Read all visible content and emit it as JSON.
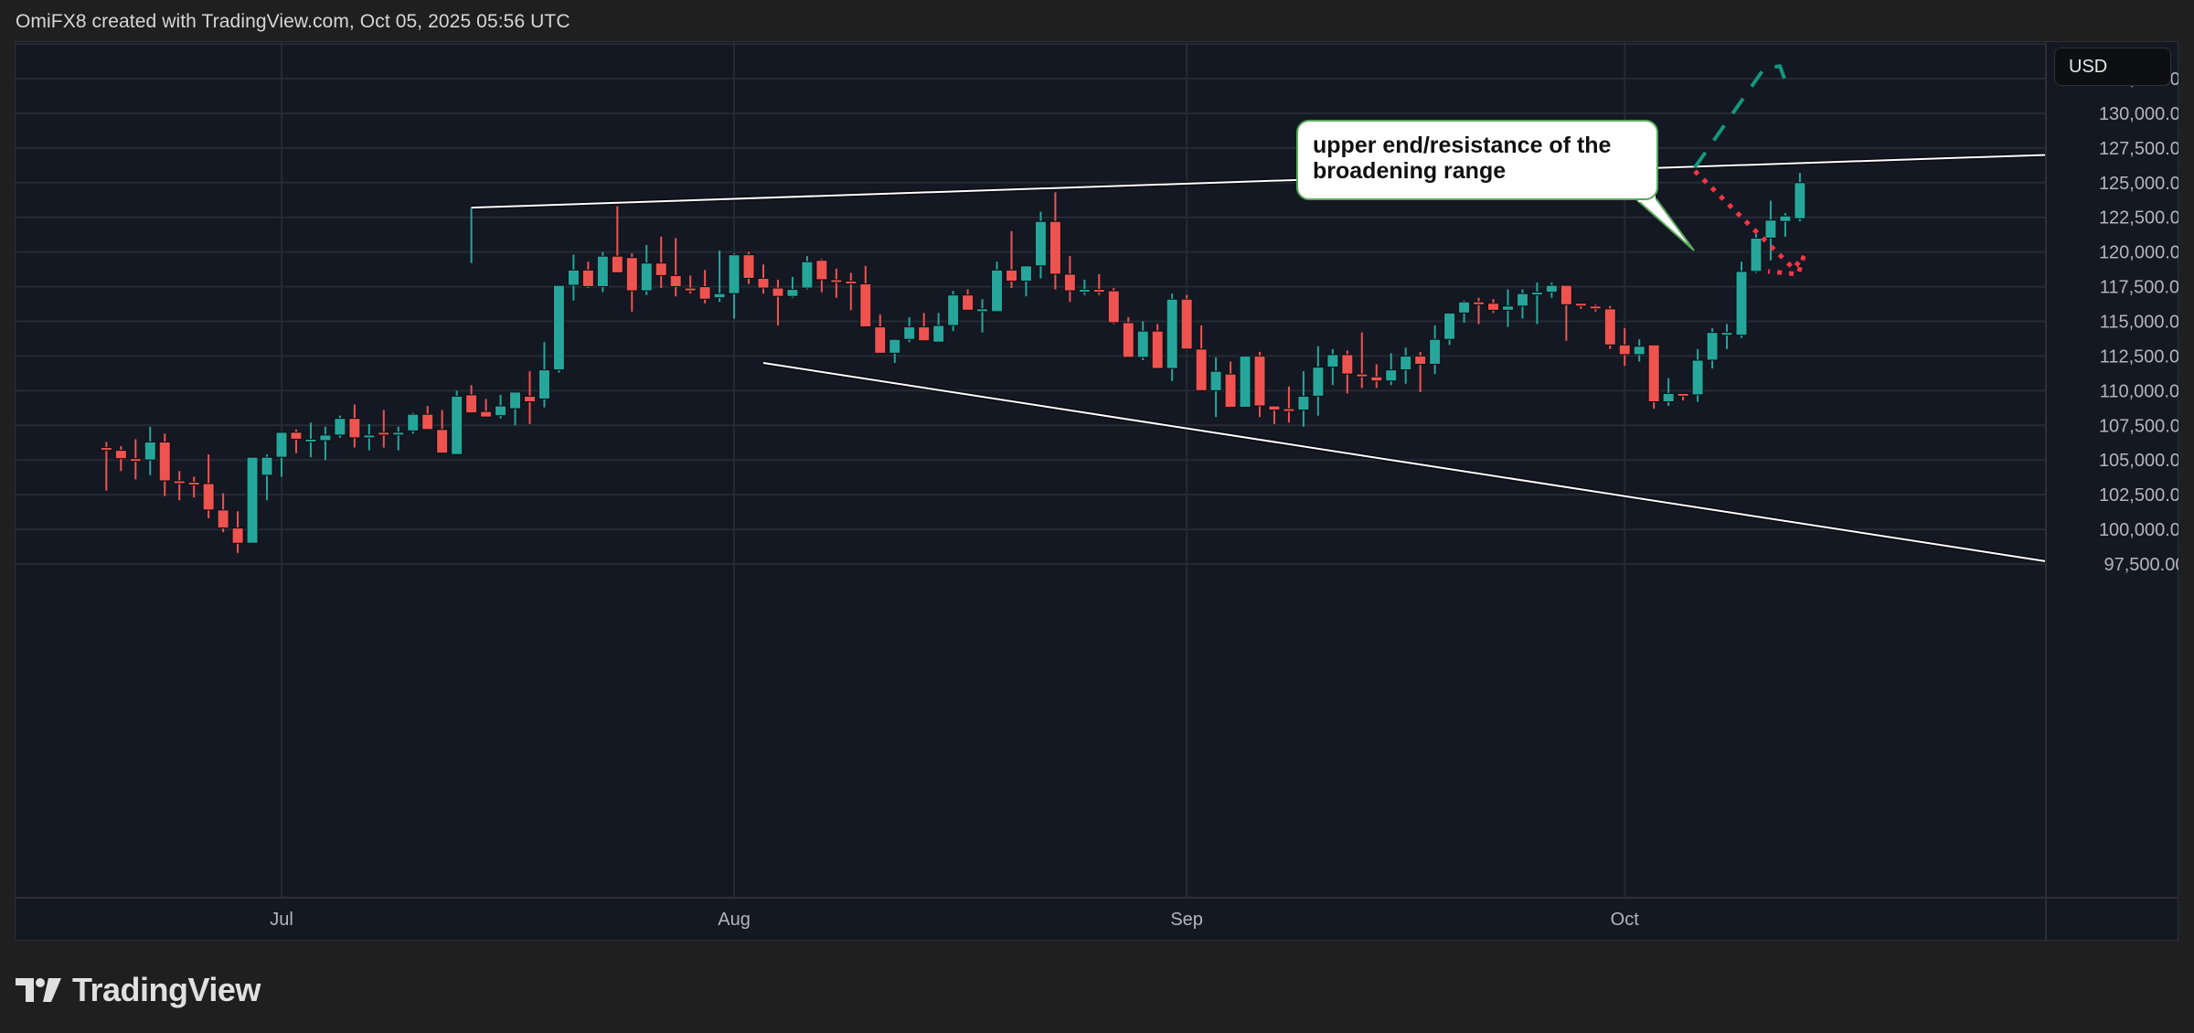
{
  "header": {
    "attribution": "OmiFX8 created with TradingView.com, Oct 05, 2025 05:56 UTC"
  },
  "price_axis": {
    "currency_label": "USD"
  },
  "annotation": {
    "callout_text": "upper end/resistance of the broadening range"
  },
  "footer": {
    "logo_text": "TradingView"
  },
  "colors": {
    "up": "#26a69a",
    "down": "#ef5350",
    "background": "#141823",
    "grid": "#262a35",
    "trendline": "#ffffff",
    "bull_projection": "#14977f",
    "bear_projection": "#f23645",
    "callout_border": "#5aa85a"
  },
  "chart_data": {
    "type": "candlestick",
    "title": "",
    "xlabel": "",
    "ylabel": "USD",
    "ylim": [
      95000,
      134500
    ],
    "y_ticks": [
      "132,500.00",
      "130,000.00",
      "127,500.00",
      "125,000.00",
      "122,500.00",
      "120,000.00",
      "117,500.00",
      "115,000.00",
      "112,500.00",
      "110,000.00",
      "107,500.00",
      "105,000.00",
      "102,500.00",
      "100,000.00",
      "97,500.00"
    ],
    "y_tick_values": [
      132500,
      130000,
      127500,
      125000,
      122500,
      120000,
      117500,
      115000,
      112500,
      110000,
      107500,
      105000,
      102500,
      100000,
      97500
    ],
    "x_ticks": [
      {
        "label": "Jul",
        "day": 0
      },
      {
        "label": "Aug",
        "day": 31
      },
      {
        "label": "Sep",
        "day": 62
      },
      {
        "label": "Oct",
        "day": 92
      }
    ],
    "grid": true,
    "interval": "1D",
    "candles_start_day": -12,
    "candles_note": "day offsets relative to Jul 1; values estimated from pixels",
    "candles": [
      [
        105900,
        106300,
        102800,
        105700
      ],
      [
        105700,
        106000,
        104200,
        105100
      ],
      [
        105100,
        106500,
        103600,
        104900
      ],
      [
        105000,
        107400,
        103900,
        106300
      ],
      [
        106300,
        106900,
        102400,
        103500
      ],
      [
        103500,
        104200,
        102100,
        103400
      ],
      [
        103400,
        103800,
        102300,
        103300
      ],
      [
        103300,
        105400,
        100800,
        101400
      ],
      [
        101400,
        102600,
        99800,
        100100
      ],
      [
        100100,
        101300,
        98300,
        99000
      ],
      [
        99000,
        103200,
        100800,
        105200
      ],
      [
        103900,
        105400,
        102100,
        105200
      ],
      [
        105200,
        106300,
        103800,
        107000
      ],
      [
        107000,
        107200,
        105500,
        106500
      ],
      [
        106500,
        107700,
        105200,
        106500
      ],
      [
        106400,
        107400,
        105000,
        106800
      ],
      [
        106800,
        108200,
        106600,
        108000
      ],
      [
        108000,
        109000,
        105900,
        106600
      ],
      [
        106600,
        107600,
        105700,
        106800
      ],
      [
        107000,
        108600,
        105900,
        106900
      ],
      [
        106900,
        107400,
        105700,
        107000
      ],
      [
        107100,
        108400,
        106900,
        108300
      ],
      [
        108300,
        108900,
        107600,
        107200
      ],
      [
        107200,
        108600,
        106300,
        105500
      ],
      [
        105400,
        110000,
        106400,
        109600
      ],
      [
        109700,
        110400,
        108500,
        108400
      ],
      [
        108500,
        109400,
        108200,
        108100
      ],
      [
        108200,
        109700,
        108000,
        108900
      ],
      [
        108700,
        109500,
        107500,
        109900
      ],
      [
        109600,
        111400,
        107600,
        109200
      ],
      [
        109400,
        113500,
        108800,
        111500
      ],
      [
        111500,
        116700,
        111300,
        117600
      ],
      [
        117600,
        119800,
        116500,
        118700
      ],
      [
        118700,
        119300,
        117400,
        117500
      ],
      [
        117500,
        120000,
        117100,
        119700
      ],
      [
        119700,
        123300,
        119300,
        118500
      ],
      [
        119600,
        119900,
        115700,
        117200
      ],
      [
        117200,
        120500,
        116900,
        119200
      ],
      [
        119200,
        121100,
        117400,
        118300
      ],
      [
        118300,
        121000,
        116800,
        117500
      ],
      [
        117400,
        118300,
        117000,
        117200
      ],
      [
        117500,
        118700,
        116300,
        116600
      ],
      [
        116700,
        120100,
        116400,
        117000
      ],
      [
        117000,
        119900,
        115200,
        119800
      ],
      [
        119800,
        120000,
        117700,
        118100
      ],
      [
        118100,
        119100,
        117000,
        117400
      ],
      [
        117400,
        118000,
        114700,
        116800
      ],
      [
        116800,
        118200,
        116700,
        117300
      ],
      [
        117400,
        119700,
        117300,
        119300
      ],
      [
        119400,
        119500,
        117100,
        118000
      ],
      [
        118000,
        118800,
        116700,
        117900
      ],
      [
        117900,
        118500,
        115800,
        117700
      ],
      [
        117700,
        119000,
        115900,
        114600
      ],
      [
        114600,
        115500,
        112900,
        112700
      ],
      [
        112700,
        113600,
        112000,
        113700
      ],
      [
        113700,
        115300,
        113500,
        114600
      ],
      [
        114600,
        115600,
        114400,
        113600
      ],
      [
        113500,
        115600,
        113500,
        114700
      ],
      [
        114700,
        117200,
        114300,
        116900
      ],
      [
        116900,
        117300,
        115900,
        115800
      ],
      [
        115700,
        116600,
        114200,
        115900
      ],
      [
        115700,
        119300,
        115700,
        118700
      ],
      [
        118700,
        121500,
        117400,
        117900
      ],
      [
        117900,
        118700,
        116800,
        119000
      ],
      [
        119000,
        122900,
        118100,
        122200
      ],
      [
        122200,
        124300,
        117300,
        118400
      ],
      [
        118400,
        119700,
        116400,
        117200
      ],
      [
        117200,
        118000,
        116900,
        117300
      ],
      [
        117300,
        118400,
        116900,
        117200
      ],
      [
        117200,
        117400,
        114800,
        114900
      ],
      [
        114900,
        115300,
        112600,
        112400
      ],
      [
        112400,
        115000,
        112200,
        114300
      ],
      [
        114300,
        114800,
        111600,
        111600
      ],
      [
        111600,
        117000,
        110700,
        116600
      ],
      [
        116600,
        116900,
        113500,
        113000
      ],
      [
        113000,
        114700,
        110400,
        110000
      ],
      [
        110000,
        112400,
        108100,
        111400
      ],
      [
        111200,
        112100,
        110000,
        108800
      ],
      [
        108800,
        111600,
        109200,
        112500
      ],
      [
        112500,
        112800,
        108100,
        108900
      ],
      [
        108900,
        108900,
        107600,
        108600
      ],
      [
        108700,
        110300,
        107700,
        108600
      ],
      [
        108600,
        111400,
        107400,
        109600
      ],
      [
        109600,
        113200,
        108200,
        111700
      ],
      [
        111700,
        113000,
        110400,
        112600
      ],
      [
        112600,
        112900,
        109800,
        111200
      ],
      [
        111200,
        114200,
        110200,
        111000
      ],
      [
        111000,
        111900,
        110200,
        110700
      ],
      [
        110700,
        112700,
        110400,
        111500
      ],
      [
        111500,
        113100,
        110500,
        112500
      ],
      [
        112500,
        112800,
        109900,
        111900
      ],
      [
        111900,
        114700,
        111200,
        113700
      ],
      [
        113700,
        115500,
        113300,
        115600
      ],
      [
        115600,
        116500,
        114900,
        116400
      ],
      [
        116400,
        116700,
        114800,
        116300
      ],
      [
        116300,
        116600,
        115600,
        115800
      ],
      [
        115800,
        117300,
        114600,
        116100
      ],
      [
        116100,
        117300,
        115200,
        117000
      ],
      [
        117000,
        117800,
        114800,
        117100
      ],
      [
        117100,
        117800,
        116700,
        117600
      ],
      [
        117600,
        117400,
        113600,
        116200
      ],
      [
        116300,
        116300,
        115900,
        116100
      ],
      [
        116100,
        116200,
        115700,
        115900
      ],
      [
        115900,
        116100,
        113000,
        113300
      ],
      [
        113300,
        114500,
        111800,
        112600
      ],
      [
        112600,
        113700,
        112100,
        113200
      ],
      [
        113300,
        113300,
        108700,
        109200
      ],
      [
        109200,
        110900,
        108900,
        109800
      ],
      [
        109800,
        109800,
        109300,
        109700
      ],
      [
        109700,
        113000,
        109200,
        112200
      ],
      [
        112200,
        114500,
        111600,
        114200
      ],
      [
        114200,
        114800,
        113000,
        114200
      ],
      [
        114000,
        119300,
        113800,
        118600
      ],
      [
        118600,
        121300,
        118500,
        121000
      ],
      [
        121000,
        123700,
        119400,
        122300
      ],
      [
        122200,
        122800,
        121100,
        122600
      ],
      [
        122400,
        125700,
        122200,
        125000
      ]
    ],
    "drawings": {
      "upper_resistance_line": {
        "from": {
          "day": 13,
          "price": 123200
        },
        "to_price_at_axis": 127000,
        "style": "solid white",
        "label": "upper end/resistance of the broadening range"
      },
      "lower_support_line": {
        "from": {
          "day": 33,
          "price": 112000
        },
        "to_price_at_axis": 97700,
        "style": "solid white"
      },
      "bull_projection": {
        "style": "dashed teal",
        "from_price": 126100,
        "to_price": 133200
      },
      "bear_projection": {
        "style": "dotted red",
        "from_price": 126100,
        "to_price": 118500
      }
    }
  }
}
